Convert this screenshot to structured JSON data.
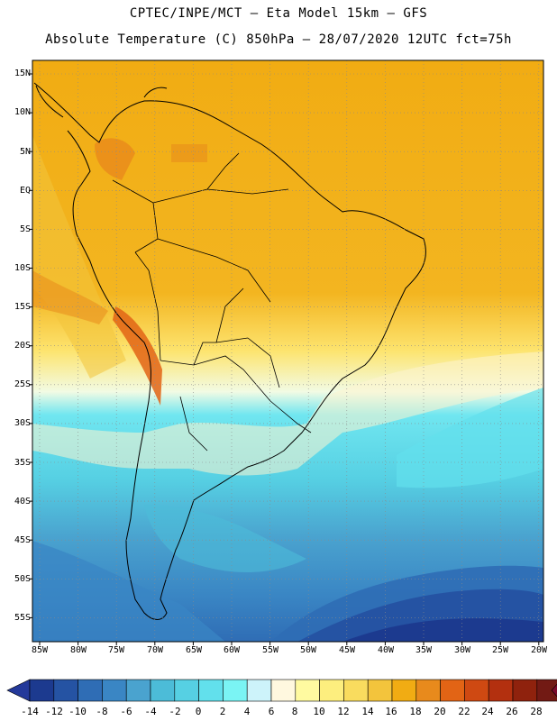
{
  "header": {
    "line1": "CPTEC/INPE/MCT –  Eta Model 15km – GFS",
    "line2": "Absolute Temperature (C) 850hPa – 28/07/2020 12UTC fct=75h"
  },
  "map": {
    "lat_labels": [
      "15N",
      "10N",
      "5N",
      "EQ",
      "5S",
      "10S",
      "15S",
      "20S",
      "25S",
      "30S",
      "35S",
      "40S",
      "45S",
      "50S",
      "55S"
    ],
    "lon_labels": [
      "85W",
      "80W",
      "75W",
      "70W",
      "65W",
      "60W",
      "55W",
      "50W",
      "45W",
      "40W",
      "35W",
      "30W",
      "25W",
      "20W"
    ],
    "grid": "dotted"
  },
  "colorbar": {
    "labels": [
      "-14",
      "-12",
      "-10",
      "-8",
      "-6",
      "-4",
      "-2",
      "0",
      "2",
      "4",
      "6",
      "8",
      "10",
      "12",
      "14",
      "16",
      "18",
      "20",
      "22",
      "24",
      "26",
      "28"
    ],
    "colors": [
      "#1c3a8f",
      "#2553a3",
      "#2f6db5",
      "#3a86c4",
      "#4aa3cf",
      "#4cbcd8",
      "#56d0e3",
      "#62e0ec",
      "#7af4f4",
      "#cdf3fa",
      "#fff8df",
      "#fffaa0",
      "#fdee7e",
      "#f9dc5e",
      "#f3c43c",
      "#f1ac13",
      "#e88a1c",
      "#e26415",
      "#cf4912",
      "#b3300f",
      "#8f220d",
      "#721a14"
    ],
    "under_color": "#24399a",
    "over_color": "#7c0a2b"
  }
}
